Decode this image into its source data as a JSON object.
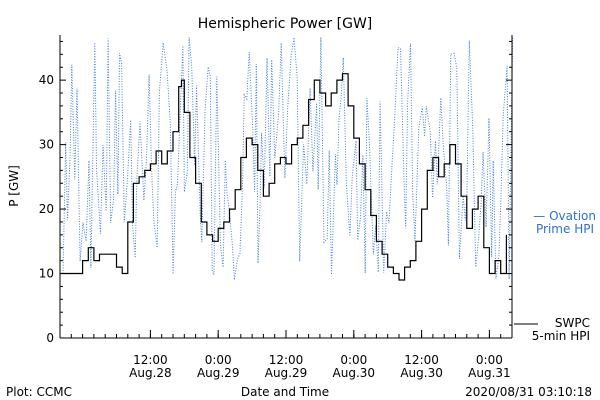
{
  "chart_data": {
    "type": "line",
    "title": "Hemispheric Power [GW]",
    "xlabel": "Date and Time",
    "ylabel": "P [GW]",
    "ylim": [
      0,
      47
    ],
    "yticks": [
      0,
      10,
      20,
      30,
      40
    ],
    "xlim": [
      "2020-08-27T20:00",
      "2020-08-31T04:00"
    ],
    "xticks": [
      {
        "time": "2020-08-28T12:00",
        "label1": "12:00",
        "label2": "Aug.28"
      },
      {
        "time": "2020-08-29T00:00",
        "label1": "0:00",
        "label2": "Aug.29"
      },
      {
        "time": "2020-08-29T12:00",
        "label1": "12:00",
        "label2": "Aug.29"
      },
      {
        "time": "2020-08-30T00:00",
        "label1": "0:00",
        "label2": "Aug.30"
      },
      {
        "time": "2020-08-30T12:00",
        "label1": "12:00",
        "label2": "Aug.30"
      },
      {
        "time": "2020-08-31T00:00",
        "label1": "0:00",
        "label2": "Aug.31"
      }
    ],
    "legend": {
      "placement": "right",
      "ovation": {
        "line1": "— Ovation",
        "line2": "Prime HPI",
        "color": "#2f6fd1",
        "style": "dotted"
      },
      "swpc": {
        "line1": "SWPC",
        "line2": "5-min HPI",
        "color": "#000000",
        "style": "solid"
      }
    },
    "series": [
      {
        "name": "SWPC 5-min HPI",
        "color": "#000000",
        "style": "solid",
        "points": [
          [
            "2020-08-27T20:00",
            10
          ],
          [
            "2020-08-27T21:30",
            10
          ],
          [
            "2020-08-27T23:00",
            10
          ],
          [
            "2020-08-28T00:00",
            12
          ],
          [
            "2020-08-28T01:00",
            14
          ],
          [
            "2020-08-28T02:00",
            12
          ],
          [
            "2020-08-28T03:00",
            13
          ],
          [
            "2020-08-28T04:00",
            13
          ],
          [
            "2020-08-28T05:00",
            13
          ],
          [
            "2020-08-28T06:00",
            11
          ],
          [
            "2020-08-28T07:00",
            10
          ],
          [
            "2020-08-28T08:00",
            18
          ],
          [
            "2020-08-28T09:00",
            24
          ],
          [
            "2020-08-28T10:00",
            25
          ],
          [
            "2020-08-28T11:00",
            26
          ],
          [
            "2020-08-28T12:00",
            27
          ],
          [
            "2020-08-28T13:00",
            29
          ],
          [
            "2020-08-28T14:00",
            27
          ],
          [
            "2020-08-28T15:00",
            29
          ],
          [
            "2020-08-28T16:00",
            32
          ],
          [
            "2020-08-28T17:00",
            39
          ],
          [
            "2020-08-28T17:30",
            40
          ],
          [
            "2020-08-28T18:00",
            35
          ],
          [
            "2020-08-28T19:00",
            28
          ],
          [
            "2020-08-28T20:00",
            24
          ],
          [
            "2020-08-28T21:00",
            18
          ],
          [
            "2020-08-28T22:00",
            16
          ],
          [
            "2020-08-28T23:00",
            15
          ],
          [
            "2020-08-29T00:00",
            17
          ],
          [
            "2020-08-29T01:00",
            18
          ],
          [
            "2020-08-29T02:00",
            20
          ],
          [
            "2020-08-29T03:00",
            23
          ],
          [
            "2020-08-29T04:00",
            28
          ],
          [
            "2020-08-29T05:00",
            31
          ],
          [
            "2020-08-29T06:00",
            30
          ],
          [
            "2020-08-29T07:00",
            26
          ],
          [
            "2020-08-29T08:00",
            22
          ],
          [
            "2020-08-29T09:00",
            24
          ],
          [
            "2020-08-29T10:00",
            27
          ],
          [
            "2020-08-29T11:00",
            28
          ],
          [
            "2020-08-29T12:00",
            27
          ],
          [
            "2020-08-29T13:00",
            30
          ],
          [
            "2020-08-29T14:00",
            31
          ],
          [
            "2020-08-29T15:00",
            33
          ],
          [
            "2020-08-29T16:00",
            37
          ],
          [
            "2020-08-29T17:00",
            40
          ],
          [
            "2020-08-29T18:00",
            38
          ],
          [
            "2020-08-29T19:00",
            36
          ],
          [
            "2020-08-29T20:00",
            38
          ],
          [
            "2020-08-29T21:00",
            40
          ],
          [
            "2020-08-29T22:00",
            41
          ],
          [
            "2020-08-29T23:00",
            36
          ],
          [
            "2020-08-30T00:00",
            31
          ],
          [
            "2020-08-30T01:00",
            27
          ],
          [
            "2020-08-30T02:00",
            23
          ],
          [
            "2020-08-30T03:00",
            19
          ],
          [
            "2020-08-30T04:00",
            15
          ],
          [
            "2020-08-30T05:00",
            13
          ],
          [
            "2020-08-30T06:00",
            11
          ],
          [
            "2020-08-30T07:00",
            10
          ],
          [
            "2020-08-30T08:00",
            9
          ],
          [
            "2020-08-30T09:00",
            11
          ],
          [
            "2020-08-30T10:00",
            12
          ],
          [
            "2020-08-30T11:00",
            15
          ],
          [
            "2020-08-30T12:00",
            20
          ],
          [
            "2020-08-30T13:00",
            26
          ],
          [
            "2020-08-30T14:00",
            28
          ],
          [
            "2020-08-30T15:00",
            25
          ],
          [
            "2020-08-30T16:00",
            27
          ],
          [
            "2020-08-30T17:00",
            30
          ],
          [
            "2020-08-30T18:00",
            27
          ],
          [
            "2020-08-30T19:00",
            22
          ],
          [
            "2020-08-30T20:00",
            17
          ],
          [
            "2020-08-30T21:00",
            20
          ],
          [
            "2020-08-30T22:00",
            22
          ],
          [
            "2020-08-30T23:00",
            14
          ],
          [
            "2020-08-31T00:00",
            10
          ],
          [
            "2020-08-31T01:00",
            12
          ],
          [
            "2020-08-31T02:00",
            10
          ],
          [
            "2020-08-31T03:00",
            16
          ]
        ]
      }
    ]
  },
  "footer": {
    "left": "Plot: CCMC",
    "right": "2020/08/31 03:10:18"
  }
}
